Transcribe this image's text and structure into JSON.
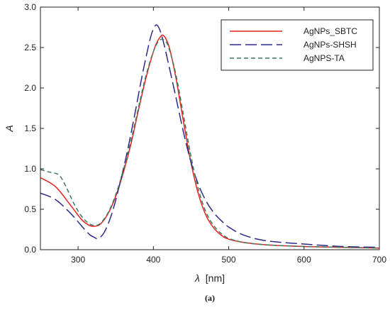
{
  "chart_data": {
    "type": "line",
    "xlabel_symbol": "λ",
    "xlabel_unit": "[nm]",
    "ylabel": "A",
    "xlim": [
      250,
      700
    ],
    "ylim": [
      0,
      3.0
    ],
    "x_ticks": [
      300,
      400,
      500,
      600,
      700
    ],
    "y_ticks": [
      0.0,
      0.5,
      1.0,
      1.5,
      2.0,
      2.5,
      3.0
    ],
    "y_tick_labels": [
      "0.0",
      "0.5",
      "1.0",
      "1.5",
      "2.0",
      "2.5",
      "3.0"
    ],
    "grid": false,
    "legend_position": "top-right",
    "caption": "(a)",
    "series": [
      {
        "name": "AgNPs_SBTC",
        "color": "#e8231d",
        "dash": "solid",
        "x": [
          250,
          270,
          290,
          305,
          315,
          322,
          330,
          340,
          350,
          360,
          370,
          380,
          390,
          400,
          405,
          410,
          413,
          417,
          422,
          430,
          440,
          450,
          460,
          470,
          480,
          490,
          500,
          520,
          550,
          600,
          650,
          700
        ],
        "y": [
          0.89,
          0.78,
          0.55,
          0.37,
          0.3,
          0.29,
          0.32,
          0.45,
          0.66,
          0.95,
          1.3,
          1.72,
          2.12,
          2.45,
          2.57,
          2.64,
          2.65,
          2.6,
          2.47,
          2.12,
          1.58,
          1.07,
          0.68,
          0.42,
          0.27,
          0.18,
          0.13,
          0.09,
          0.06,
          0.04,
          0.03,
          0.02
        ]
      },
      {
        "name": "AgNPs-SHSH",
        "color": "#2b2a8c",
        "dash": "long",
        "x": [
          250,
          270,
          290,
          305,
          315,
          322,
          327,
          335,
          345,
          355,
          365,
          375,
          385,
          395,
          400,
          404,
          408,
          413,
          420,
          430,
          440,
          450,
          460,
          470,
          480,
          490,
          500,
          520,
          550,
          600,
          650,
          700
        ],
        "y": [
          0.7,
          0.62,
          0.45,
          0.29,
          0.19,
          0.15,
          0.14,
          0.22,
          0.45,
          0.8,
          1.2,
          1.66,
          2.15,
          2.58,
          2.73,
          2.78,
          2.73,
          2.58,
          2.3,
          1.88,
          1.45,
          1.08,
          0.8,
          0.6,
          0.46,
          0.36,
          0.28,
          0.18,
          0.11,
          0.07,
          0.04,
          0.03
        ]
      },
      {
        "name": "AgNPS-TA",
        "color": "#3d7a60",
        "dash": "short",
        "x": [
          250,
          262,
          275,
          285,
          295,
          305,
          315,
          323,
          330,
          340,
          350,
          360,
          370,
          380,
          390,
          400,
          407,
          412,
          417,
          422,
          430,
          440,
          450,
          460,
          470,
          480,
          490,
          500,
          520,
          550,
          600,
          650,
          700
        ],
        "y": [
          0.99,
          0.96,
          0.92,
          0.76,
          0.56,
          0.41,
          0.32,
          0.3,
          0.33,
          0.46,
          0.68,
          0.98,
          1.34,
          1.75,
          2.15,
          2.45,
          2.58,
          2.6,
          2.57,
          2.45,
          2.16,
          1.66,
          1.15,
          0.74,
          0.46,
          0.3,
          0.2,
          0.14,
          0.09,
          0.06,
          0.04,
          0.03,
          0.02
        ]
      }
    ]
  }
}
